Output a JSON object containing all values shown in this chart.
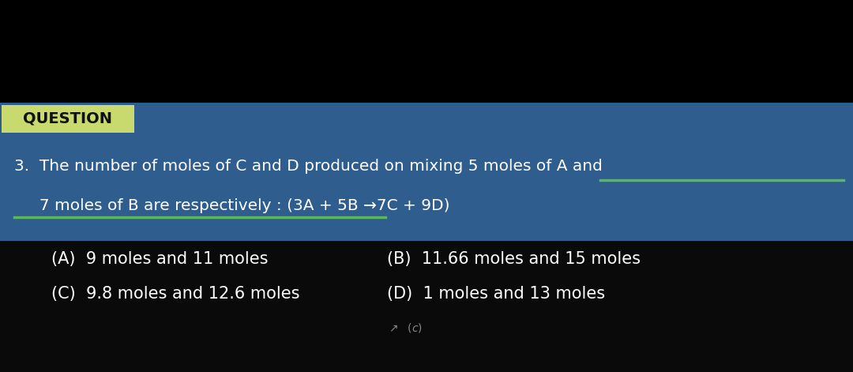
{
  "bg_black": "#000000",
  "bg_question_box": "#2e5d8e",
  "bg_answer_area": "#0a0a0a",
  "bg_label": "#c8d96e",
  "label_text": "QUESTION",
  "label_text_color": "#111111",
  "question_line1": "3.  The number of moles of C and D produced on mixing 5 moles of A and",
  "question_line2": "     7 moles of B are respectively : (3A + 5B →7C + 9D)",
  "answer_A": "(A)  9 moles and 11 moles",
  "answer_B": "(B)  11.66 moles and 15 moles",
  "answer_C": "(C)  9.8 moles and 12.6 moles",
  "answer_D": "(D)  1 moles and 13 moles",
  "text_white": "#ffffff",
  "green_line": "#5cb85c",
  "white_bar_color": "#e8e8e8",
  "figure_width": 10.8,
  "figure_height": 4.71
}
